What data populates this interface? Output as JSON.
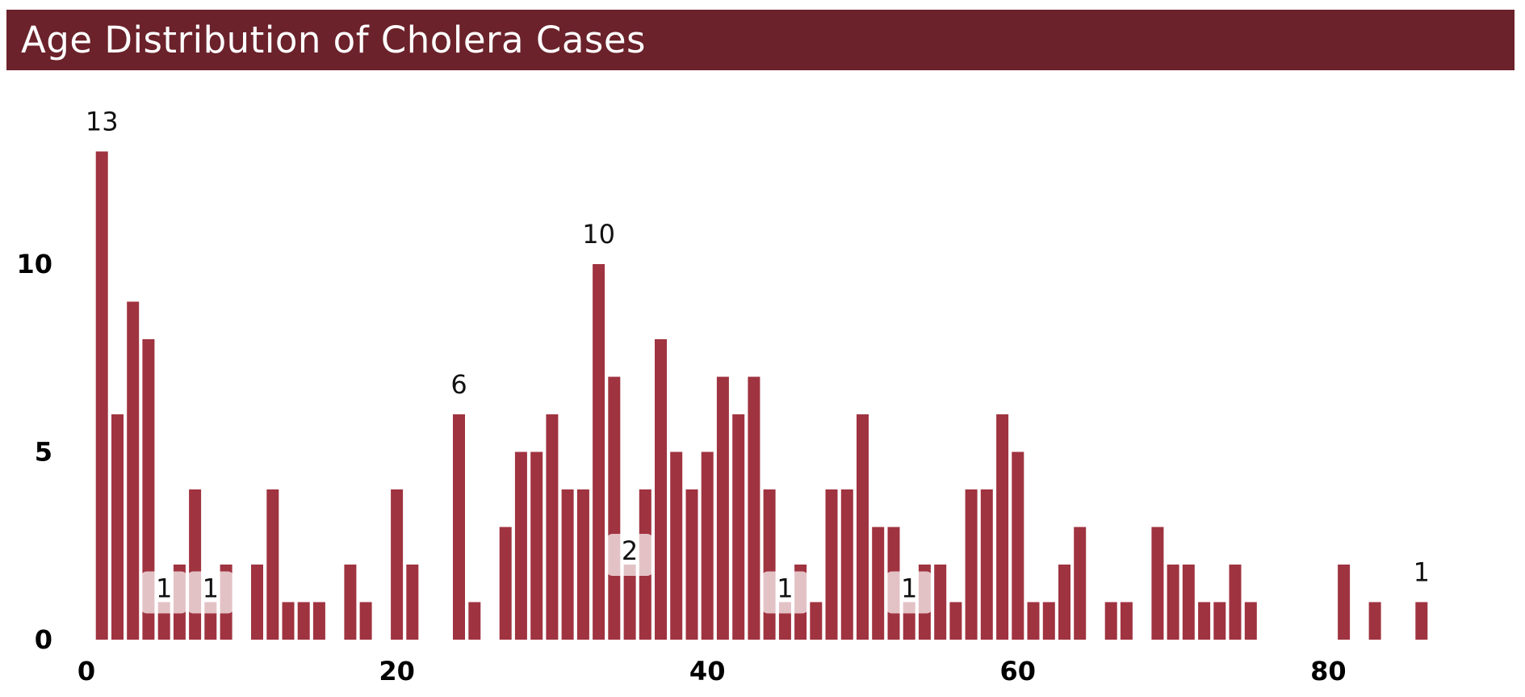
{
  "title": "Age Distribution of Cholera Cases",
  "colors": {
    "title_bar": "#6b222b",
    "title_text": "#ffffff",
    "bar": "#a03340",
    "background": "#ffffff"
  },
  "chart_data": {
    "type": "bar",
    "title": "Age Distribution of Cholera Cases",
    "xlabel": "",
    "ylabel": "",
    "x_axis": "age",
    "xlim": [
      0,
      90
    ],
    "ylim": [
      0,
      13
    ],
    "xticks": [
      0,
      20,
      40,
      60,
      80
    ],
    "yticks": [
      0,
      5,
      10
    ],
    "grid": false,
    "legend": "none",
    "bars": [
      {
        "x": 1,
        "value": 13,
        "label": "13"
      },
      {
        "x": 2,
        "value": 6
      },
      {
        "x": 3,
        "value": 9
      },
      {
        "x": 4,
        "value": 8
      },
      {
        "x": 5,
        "value": 1,
        "label": "1"
      },
      {
        "x": 6,
        "value": 2
      },
      {
        "x": 7,
        "value": 4
      },
      {
        "x": 8,
        "value": 1,
        "label": "1"
      },
      {
        "x": 9,
        "value": 2
      },
      {
        "x": 11,
        "value": 2
      },
      {
        "x": 12,
        "value": 4
      },
      {
        "x": 13,
        "value": 1
      },
      {
        "x": 14,
        "value": 1
      },
      {
        "x": 15,
        "value": 1
      },
      {
        "x": 17,
        "value": 2
      },
      {
        "x": 18,
        "value": 1
      },
      {
        "x": 20,
        "value": 4
      },
      {
        "x": 21,
        "value": 2
      },
      {
        "x": 24,
        "value": 6,
        "label": "6"
      },
      {
        "x": 25,
        "value": 1
      },
      {
        "x": 27,
        "value": 3
      },
      {
        "x": 28,
        "value": 5
      },
      {
        "x": 29,
        "value": 5
      },
      {
        "x": 30,
        "value": 6
      },
      {
        "x": 31,
        "value": 4
      },
      {
        "x": 32,
        "value": 4
      },
      {
        "x": 33,
        "value": 10,
        "label": "10"
      },
      {
        "x": 34,
        "value": 7
      },
      {
        "x": 35,
        "value": 2,
        "label": "2"
      },
      {
        "x": 36,
        "value": 4
      },
      {
        "x": 37,
        "value": 8
      },
      {
        "x": 38,
        "value": 5
      },
      {
        "x": 39,
        "value": 4
      },
      {
        "x": 40,
        "value": 5
      },
      {
        "x": 41,
        "value": 7
      },
      {
        "x": 42,
        "value": 6
      },
      {
        "x": 43,
        "value": 7
      },
      {
        "x": 44,
        "value": 4
      },
      {
        "x": 45,
        "value": 1,
        "label": "1"
      },
      {
        "x": 46,
        "value": 2
      },
      {
        "x": 47,
        "value": 1
      },
      {
        "x": 48,
        "value": 4
      },
      {
        "x": 49,
        "value": 4
      },
      {
        "x": 50,
        "value": 6
      },
      {
        "x": 51,
        "value": 3
      },
      {
        "x": 52,
        "value": 3
      },
      {
        "x": 53,
        "value": 1,
        "label": "1"
      },
      {
        "x": 54,
        "value": 2
      },
      {
        "x": 55,
        "value": 2
      },
      {
        "x": 56,
        "value": 1
      },
      {
        "x": 57,
        "value": 4
      },
      {
        "x": 58,
        "value": 4
      },
      {
        "x": 59,
        "value": 6
      },
      {
        "x": 60,
        "value": 5
      },
      {
        "x": 61,
        "value": 1
      },
      {
        "x": 62,
        "value": 1
      },
      {
        "x": 63,
        "value": 2
      },
      {
        "x": 64,
        "value": 3
      },
      {
        "x": 66,
        "value": 1
      },
      {
        "x": 67,
        "value": 1
      },
      {
        "x": 69,
        "value": 3
      },
      {
        "x": 70,
        "value": 2
      },
      {
        "x": 71,
        "value": 2
      },
      {
        "x": 72,
        "value": 1
      },
      {
        "x": 73,
        "value": 1
      },
      {
        "x": 74,
        "value": 2
      },
      {
        "x": 75,
        "value": 1
      },
      {
        "x": 81,
        "value": 2
      },
      {
        "x": 83,
        "value": 1
      },
      {
        "x": 86,
        "value": 1,
        "label": "1"
      }
    ]
  }
}
